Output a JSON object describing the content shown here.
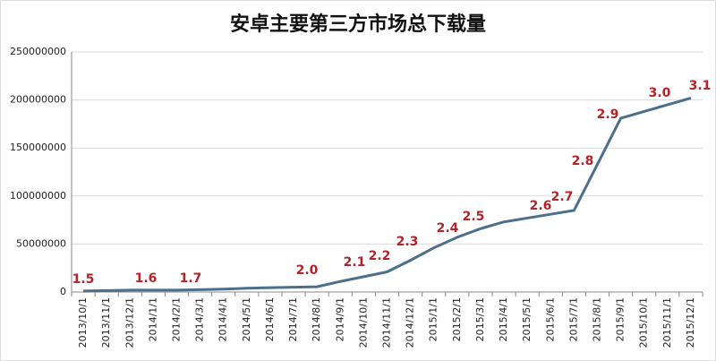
{
  "chart_data": {
    "type": "line",
    "title": "安卓主要第三方市场总下载量",
    "categories": [
      "2013/10/1",
      "2013/11/1",
      "2013/12/1",
      "2014/1/1",
      "2014/2/1",
      "2014/3/1",
      "2014/4/1",
      "2014/5/1",
      "2014/6/1",
      "2014/7/1",
      "2014/8/1",
      "2014/9/1",
      "2014/10/1",
      "2014/11/1",
      "2014/12/1",
      "2015/1/1",
      "2015/2/1",
      "2015/3/1",
      "2015/4/1",
      "2015/5/1",
      "2015/6/1",
      "2015/7/1",
      "2015/8/1",
      "2015/9/1",
      "2015/10/1",
      "2015/11/1",
      "2015/12/1"
    ],
    "series": [
      {
        "name": "总下载量",
        "color": "#4c6f8c",
        "values": [
          1000000,
          1500000,
          2000000,
          2000000,
          2000000,
          2500000,
          3000000,
          4000000,
          4500000,
          5000000,
          5500000,
          11000000,
          16000000,
          21000000,
          33000000,
          46000000,
          57000000,
          66000000,
          73000000,
          77000000,
          81000000,
          85000000,
          133000000,
          181000000,
          188000000,
          195000000,
          202000000
        ]
      }
    ],
    "annotations": [
      "1.5",
      "1.6",
      "1.7",
      "2.0",
      "2.1",
      "2.2",
      "2.3",
      "2.4",
      "2.5",
      "2.6",
      "2.7",
      "2.8",
      "2.9",
      "3.0",
      "3.1"
    ],
    "ylim": [
      0,
      250000000
    ],
    "yticks": [
      0,
      50000000,
      100000000,
      150000000,
      200000000,
      250000000
    ],
    "grid": true
  }
}
